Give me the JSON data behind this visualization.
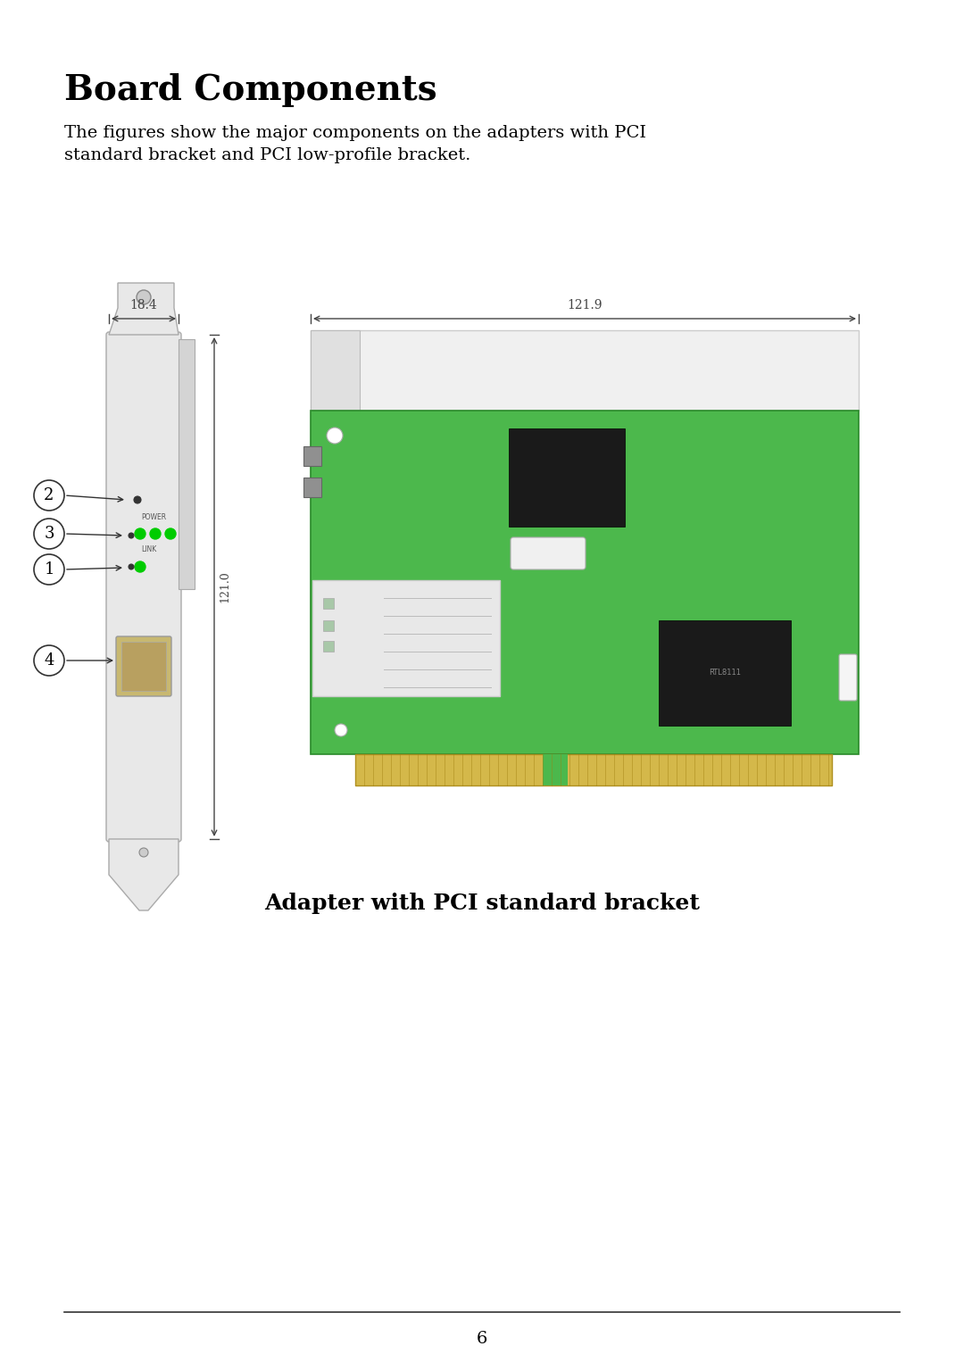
{
  "title": "Board Components",
  "body_text_line1": "The figures show the major components on the adapters with PCI",
  "body_text_line2": "standard bracket and PCI low-profile bracket.",
  "caption": "Adapter with PCI standard bracket",
  "page_number": "6",
  "dim_label_18": "18.4",
  "dim_label_121": "121.9",
  "dim_label_side": "121.0",
  "bg_color": "#ffffff",
  "bracket_color": "#e8e8e8",
  "bracket_shadow": "#d0d0d0",
  "board_green": "#4cb84c",
  "gold_color": "#d4b84a",
  "black_chip": "#1a1a1a",
  "led_green": "#00cc00",
  "sfp_color": "#ececec",
  "gray_comp": "#909090",
  "white_comp": "#f0f0f0",
  "text_color": "#000000",
  "dim_color": "#444444"
}
